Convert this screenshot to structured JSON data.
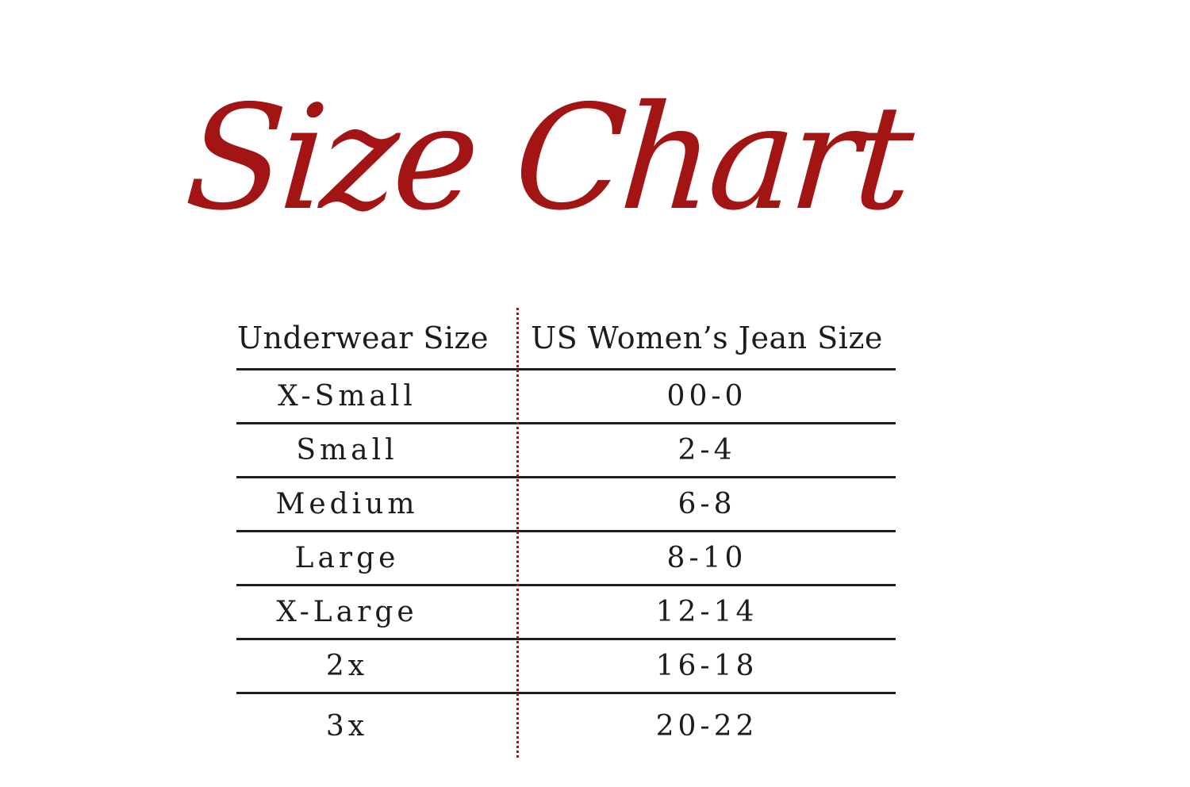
{
  "page": {
    "title": "Size Chart"
  },
  "colors": {
    "accent-red": "#A31414",
    "line-dark": "#231F20",
    "text-dark": "#1C1C1C",
    "background": "#FFFFFF"
  },
  "table": {
    "columns": [
      {
        "label": "Underwear Size"
      },
      {
        "label": "US Women’s Jean Size"
      }
    ],
    "rows": [
      {
        "underwear_size": "X-Small",
        "jean_size": "00-0"
      },
      {
        "underwear_size": "Small",
        "jean_size": "2-4"
      },
      {
        "underwear_size": "Medium",
        "jean_size": "6-8"
      },
      {
        "underwear_size": "Large",
        "jean_size": "8-10"
      },
      {
        "underwear_size": "X-Large",
        "jean_size": "12-14"
      },
      {
        "underwear_size": "2x",
        "jean_size": "16-18"
      },
      {
        "underwear_size": "3x",
        "jean_size": "20-22"
      }
    ]
  }
}
